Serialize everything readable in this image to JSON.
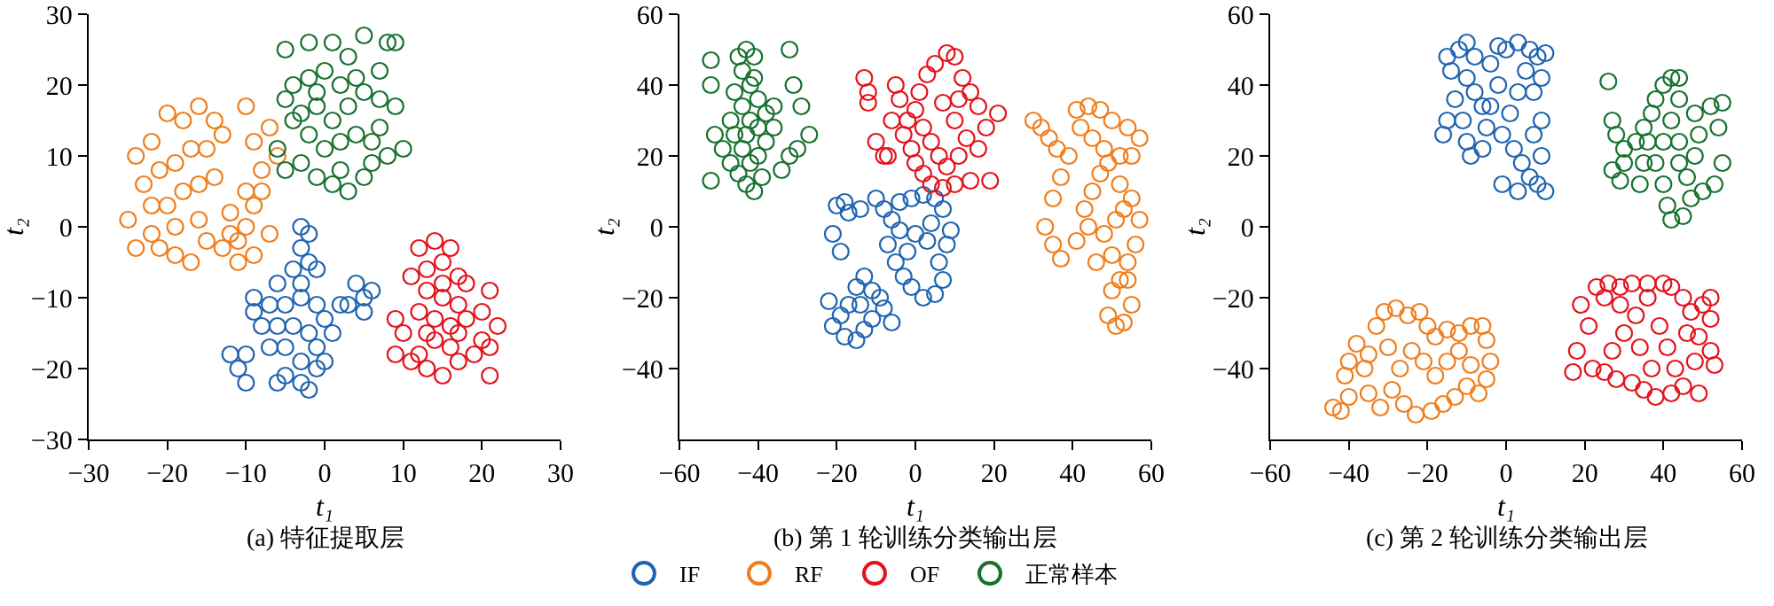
{
  "chart_data": [
    {
      "type": "scatter",
      "title": "(a) 特征提取层",
      "xlabel": "t₁",
      "ylabel": "t₂",
      "xlim": [
        -30,
        30
      ],
      "ylim": [
        -30,
        30
      ],
      "xticks": [
        -30,
        -20,
        -10,
        0,
        10,
        20,
        30
      ],
      "yticks": [
        -30,
        -20,
        -10,
        0,
        10,
        20,
        30
      ],
      "grid": false,
      "marker": "circle",
      "series": [
        {
          "color": "#1f64b0",
          "x": [
            -3,
            -2,
            -3,
            -2,
            -4,
            -1,
            -3,
            -6,
            -9,
            -7,
            -5,
            -3,
            -1,
            0,
            -8,
            -6,
            -4,
            -2,
            -1,
            -5,
            -7,
            -3,
            -5,
            -3,
            -1,
            0,
            -10,
            -11,
            -10,
            -12,
            4,
            5,
            3,
            6,
            5,
            2,
            -9,
            1,
            -6,
            -2
          ],
          "values": [
            0,
            -1,
            -3,
            -5,
            -6,
            -6,
            -8,
            -8,
            -10,
            -11,
            -11,
            -10,
            -11,
            -13,
            -14,
            -14,
            -14,
            -15,
            -17,
            -17,
            -17,
            -19,
            -21,
            -22,
            -20,
            -19,
            -18,
            -20,
            -22,
            -18,
            -8,
            -10,
            -11,
            -9,
            -12,
            -11,
            -12,
            -15,
            -22,
            -23
          ]
        },
        {
          "color": "#f07d1c",
          "x": [
            -24,
            -22,
            -20,
            -18,
            -16,
            -14,
            -13,
            -15,
            -17,
            -19,
            -21,
            -23,
            -25,
            -24,
            -22,
            -20,
            -18,
            -16,
            -14,
            -21,
            -19,
            -17,
            -15,
            -16,
            -22,
            -19,
            -12,
            -11,
            -10,
            -9,
            -8,
            -7,
            -9,
            -11,
            -12,
            -10,
            -8,
            -9,
            -7,
            -10,
            -6,
            -13
          ],
          "values": [
            10,
            12,
            16,
            15,
            17,
            15,
            13,
            11,
            11,
            9,
            8,
            6,
            1,
            -3,
            -1,
            3,
            5,
            6,
            7,
            -3,
            -4,
            -5,
            -2,
            1,
            3,
            0,
            2,
            -2,
            0,
            3,
            5,
            -1,
            -4,
            -5,
            -1,
            5,
            8,
            12,
            14,
            17,
            10,
            -3
          ]
        },
        {
          "color": "#e3121b",
          "x": [
            12,
            14,
            16,
            15,
            13,
            11,
            17,
            18,
            13,
            15,
            17,
            12,
            9,
            10,
            14,
            16,
            18,
            20,
            21,
            22,
            20,
            21,
            21,
            17,
            15,
            13,
            12,
            14,
            16,
            11,
            9,
            19,
            13,
            15,
            17
          ],
          "values": [
            -3,
            -2,
            -3,
            -5,
            -6,
            -7,
            -7,
            -8,
            -9,
            -10,
            -11,
            -12,
            -13,
            -15,
            -13,
            -14,
            -13,
            -12,
            -9,
            -14,
            -16,
            -17,
            -21,
            -19,
            -21,
            -20,
            -18,
            -16,
            -17,
            -19,
            -18,
            -18,
            -15,
            -8,
            -15
          ]
        },
        {
          "color": "#17712f",
          "x": [
            -5,
            -2,
            1,
            3,
            5,
            8,
            9,
            7,
            4,
            2,
            0,
            -2,
            -4,
            -5,
            -3,
            -1,
            1,
            3,
            5,
            7,
            9,
            10,
            8,
            6,
            4,
            2,
            0,
            -2,
            -6,
            -5,
            -3,
            -1,
            1,
            3,
            5,
            6,
            -4,
            2,
            7,
            -1
          ],
          "values": [
            25,
            26,
            26,
            24,
            27,
            26,
            26,
            22,
            21,
            20,
            22,
            21,
            20,
            18,
            16,
            17,
            15,
            17,
            19,
            18,
            17,
            11,
            10,
            12,
            13,
            12,
            11,
            13,
            11,
            8,
            9,
            7,
            6,
            5,
            7,
            9,
            15,
            8,
            14,
            19
          ]
        }
      ]
    },
    {
      "type": "scatter",
      "title": "(b) 第 1 轮训练分类输出层",
      "xlabel": "t₁",
      "ylabel": "t₂",
      "xlim": [
        -60,
        60
      ],
      "ylim": [
        -60,
        60
      ],
      "xticks": [
        -60,
        -40,
        -20,
        0,
        20,
        40,
        60
      ],
      "yticks": [
        -40,
        -20,
        0,
        20,
        40,
        60
      ],
      "grid": false,
      "marker": "circle",
      "legend": "bottom",
      "series": [
        {
          "name": "IF",
          "color": "#1f64b0",
          "x": [
            -20,
            -18,
            -17,
            -21,
            -19,
            -14,
            -10,
            -8,
            -6,
            -4,
            -1,
            2,
            5,
            7,
            9,
            8,
            6,
            7,
            5,
            2,
            -1,
            -3,
            -5,
            -7,
            -2,
            0,
            3,
            4,
            -4,
            -9,
            -11,
            -13,
            -15,
            -17,
            -19,
            -21,
            -18,
            -15,
            -13,
            -11,
            -14,
            -22,
            -6,
            -8
          ],
          "values": [
            6,
            7,
            4,
            -2,
            -7,
            5,
            8,
            5,
            2,
            7,
            8,
            9,
            8,
            5,
            -1,
            -5,
            -10,
            -15,
            -19,
            -20,
            -17,
            -14,
            -10,
            -5,
            -7,
            -2,
            -4,
            1,
            -1,
            -20,
            -18,
            -14,
            -17,
            -22,
            -25,
            -28,
            -31,
            -32,
            -29,
            -26,
            -22,
            -21,
            -27,
            -23
          ]
        },
        {
          "name": "RF",
          "color": "#f07d1c",
          "x": [
            30,
            32,
            34,
            36,
            41,
            44,
            47,
            50,
            54,
            57,
            55,
            52,
            48,
            45,
            42,
            39,
            37,
            35,
            33,
            35,
            37,
            41,
            43,
            45,
            47,
            49,
            52,
            55,
            57,
            56,
            54,
            52,
            50,
            49,
            51,
            53,
            55,
            54,
            50,
            48,
            46,
            44,
            51,
            53
          ],
          "values": [
            30,
            28,
            25,
            22,
            33,
            34,
            33,
            30,
            28,
            25,
            20,
            20,
            22,
            25,
            28,
            20,
            14,
            8,
            0,
            -5,
            -9,
            -4,
            5,
            10,
            15,
            18,
            12,
            8,
            2,
            -5,
            -10,
            -15,
            -18,
            -25,
            -28,
            -27,
            -22,
            -15,
            -8,
            -2,
            -10,
            0,
            2,
            5
          ]
        },
        {
          "name": "OF",
          "color": "#e3121b",
          "x": [
            -13,
            -12,
            -12,
            -10,
            -8,
            -5,
            -4,
            -6,
            -3,
            -1,
            0,
            2,
            4,
            7,
            10,
            14,
            19,
            21,
            18,
            16,
            14,
            12,
            10,
            8,
            5,
            3,
            1,
            0,
            2,
            4,
            6,
            8,
            11,
            13,
            10,
            7,
            -2,
            -7,
            16,
            11
          ],
          "values": [
            42,
            38,
            35,
            24,
            20,
            40,
            36,
            30,
            26,
            22,
            18,
            15,
            12,
            11,
            12,
            13,
            13,
            32,
            28,
            34,
            38,
            42,
            48,
            49,
            46,
            43,
            38,
            33,
            28,
            24,
            20,
            17,
            20,
            25,
            30,
            35,
            30,
            20,
            22,
            36
          ]
        },
        {
          "name": "正常样本",
          "color": "#17712f",
          "x": [
            -52,
            -52,
            -52,
            -51,
            -49,
            -47,
            -45,
            -43,
            -41,
            -44,
            -42,
            -40,
            -46,
            -44,
            -42,
            -40,
            -38,
            -36,
            -46,
            -44,
            -42,
            -40,
            -38,
            -45,
            -43,
            -41,
            -39,
            -32,
            -31,
            -29,
            -27,
            -32,
            -34,
            -36,
            -30,
            -47,
            -43,
            -41
          ],
          "values": [
            47,
            40,
            13,
            26,
            22,
            30,
            48,
            50,
            48,
            44,
            40,
            36,
            38,
            34,
            30,
            28,
            32,
            34,
            26,
            22,
            18,
            20,
            24,
            15,
            12,
            10,
            14,
            50,
            40,
            34,
            26,
            20,
            16,
            28,
            22,
            18,
            26,
            42
          ]
        }
      ]
    },
    {
      "type": "scatter",
      "title": "(c) 第 2 轮训练分类输出层",
      "xlabel": "t₁",
      "ylabel": "t₂",
      "xlim": [
        -60,
        60
      ],
      "ylim": [
        -60,
        60
      ],
      "xticks": [
        -60,
        -40,
        -20,
        0,
        20,
        40,
        60
      ],
      "yticks": [
        -40,
        -20,
        0,
        20,
        40,
        60
      ],
      "grid": false,
      "marker": "circle",
      "series": [
        {
          "color": "#1f64b0",
          "x": [
            -15,
            -14,
            -15,
            -16,
            -13,
            -12,
            -10,
            -8,
            -10,
            -8,
            -11,
            -10,
            -9,
            -6,
            -5,
            -4,
            -2,
            -4,
            -2,
            0,
            3,
            6,
            8,
            10,
            9,
            7,
            5,
            3,
            1,
            -1,
            2,
            4,
            6,
            8,
            10,
            9,
            7,
            9,
            -1,
            3,
            -6
          ],
          "values": [
            48,
            44,
            30,
            26,
            36,
            50,
            52,
            48,
            42,
            38,
            30,
            24,
            20,
            22,
            28,
            34,
            40,
            46,
            51,
            50,
            52,
            50,
            48,
            49,
            42,
            38,
            44,
            38,
            32,
            26,
            22,
            18,
            14,
            12,
            10,
            20,
            26,
            30,
            12,
            10,
            34
          ]
        },
        {
          "color": "#f07d1c",
          "x": [
            -44,
            -42,
            -40,
            -41,
            -40,
            -38,
            -36,
            -35,
            -32,
            -33,
            -31,
            -28,
            -25,
            -22,
            -20,
            -18,
            -15,
            -12,
            -9,
            -6,
            -5,
            -4,
            -5,
            -7,
            -10,
            -13,
            -16,
            -19,
            -23,
            -26,
            -29,
            -27,
            -24,
            -21,
            -18,
            -15,
            -12,
            -9,
            -30,
            -35
          ],
          "values": [
            -51,
            -52,
            -48,
            -42,
            -38,
            -33,
            -40,
            -47,
            -51,
            -28,
            -24,
            -23,
            -25,
            -24,
            -28,
            -31,
            -29,
            -30,
            -28,
            -28,
            -32,
            -38,
            -43,
            -47,
            -45,
            -48,
            -50,
            -52,
            -53,
            -50,
            -46,
            -40,
            -35,
            -38,
            -42,
            -38,
            -35,
            -39,
            -34,
            -36
          ]
        },
        {
          "color": "#e3121b",
          "x": [
            17,
            18,
            19,
            21,
            22,
            23,
            25,
            26,
            29,
            32,
            36,
            40,
            42,
            45,
            47,
            50,
            52,
            52,
            49,
            52,
            53,
            48,
            49,
            45,
            42,
            38,
            35,
            32,
            28,
            25,
            27,
            30,
            33,
            36,
            39,
            41,
            37,
            34,
            43,
            46,
            29
          ],
          "values": [
            -41,
            -35,
            -22,
            -28,
            -40,
            -17,
            -20,
            -16,
            -17,
            -16,
            -16,
            -16,
            -17,
            -20,
            -24,
            -22,
            -20,
            -26,
            -31,
            -35,
            -39,
            -38,
            -47,
            -45,
            -47,
            -48,
            -46,
            -44,
            -43,
            -41,
            -35,
            -30,
            -25,
            -20,
            -28,
            -34,
            -40,
            -34,
            -40,
            -30,
            -22
          ]
        },
        {
          "color": "#17712f",
          "x": [
            26,
            27,
            28,
            27,
            29,
            30,
            30,
            33,
            35,
            35,
            34,
            37,
            38,
            40,
            42,
            44,
            44,
            42,
            40,
            38,
            40,
            41,
            42,
            45,
            47,
            46,
            48,
            49,
            48,
            52,
            55,
            54,
            55,
            53,
            50,
            44,
            44,
            36
          ],
          "values": [
            41,
            30,
            26,
            16,
            13,
            18,
            22,
            24,
            28,
            18,
            12,
            32,
            36,
            40,
            42,
            42,
            36,
            30,
            24,
            18,
            12,
            6,
            2,
            3,
            8,
            14,
            20,
            26,
            32,
            34,
            35,
            28,
            18,
            12,
            10,
            18,
            24,
            24
          ]
        }
      ]
    }
  ]
}
